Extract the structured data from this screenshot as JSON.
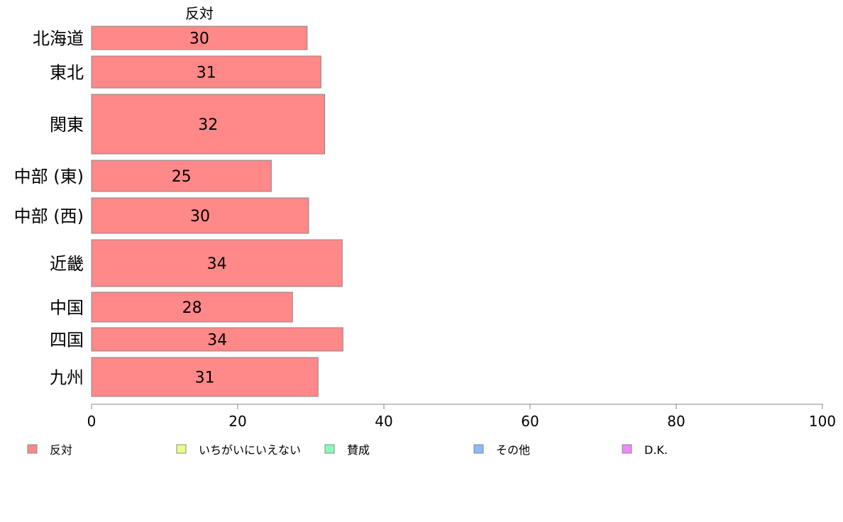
{
  "chart_data": {
    "type": "bar",
    "orientation": "horizontal",
    "stacked": true,
    "title": "",
    "xlabel": "",
    "ylabel": "",
    "xlim": [
      0,
      100
    ],
    "xticks": [
      0,
      20,
      40,
      60,
      80,
      100
    ],
    "grid": false,
    "categories": [
      "北海道",
      "東北",
      "関東",
      "中部 (東)",
      "中部 (西)",
      "近畿",
      "中国",
      "四国",
      "九州"
    ],
    "series": [
      {
        "name": "反対",
        "color": "#ff8888",
        "values": [
          30,
          31,
          32,
          25,
          30,
          34,
          28,
          34,
          31
        ],
        "bar_ends": [
          29.5,
          31.4,
          31.9,
          24.6,
          29.7,
          34.3,
          27.5,
          34.4,
          31.0
        ]
      }
    ],
    "series_title_shown": "反対",
    "legend_position": "bottom",
    "legend": [
      {
        "name": "反対",
        "color": "#ff8888"
      },
      {
        "name": "いちがいにいえない",
        "color": "#eeff88"
      },
      {
        "name": "賛成",
        "color": "#88ffbb"
      },
      {
        "name": "その他",
        "color": "#88bbff"
      },
      {
        "name": "D.K.",
        "color": "#ee88ff"
      }
    ]
  }
}
